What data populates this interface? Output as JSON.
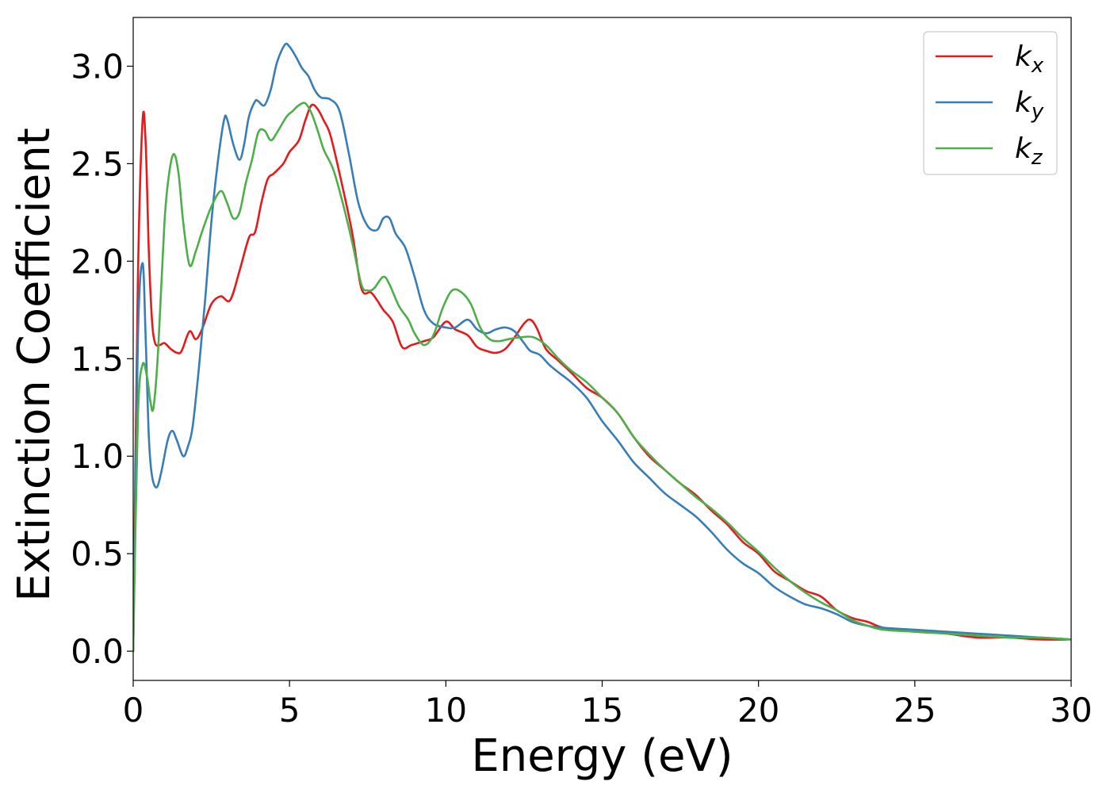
{
  "chart_data": {
    "type": "line",
    "title": "",
    "xlabel": "Energy (eV)",
    "ylabel": "Extinction Coefficient",
    "xlim": [
      0,
      30
    ],
    "ylim": [
      -0.15,
      3.25
    ],
    "xticks": [
      0,
      5,
      10,
      15,
      20,
      25,
      30
    ],
    "xtick_labels": [
      "0",
      "5",
      "10",
      "15",
      "20",
      "25",
      "30"
    ],
    "yticks": [
      0.0,
      0.5,
      1.0,
      1.5,
      2.0,
      2.5,
      3.0
    ],
    "ytick_labels": [
      "0.0",
      "0.5",
      "1.0",
      "1.5",
      "2.0",
      "2.5",
      "3.0"
    ],
    "grid": false,
    "legend_position": "top-right",
    "series": [
      {
        "name": "k_x",
        "label_base": "k",
        "label_sub": "x",
        "color": "#e41a1c",
        "x": [
          0,
          0.15,
          0.3,
          0.4,
          0.5,
          0.6,
          0.7,
          0.85,
          1.0,
          1.2,
          1.4,
          1.55,
          1.8,
          2.0,
          2.2,
          2.5,
          2.8,
          3.1,
          3.4,
          3.7,
          3.9,
          4.1,
          4.3,
          4.5,
          4.8,
          5.0,
          5.3,
          5.5,
          5.7,
          5.9,
          6.1,
          6.3,
          6.6,
          7.0,
          7.3,
          7.6,
          7.8,
          8.0,
          8.3,
          8.6,
          8.9,
          9.3,
          9.6,
          10.0,
          10.3,
          10.7,
          11.0,
          11.3,
          11.6,
          11.9,
          12.2,
          12.5,
          12.7,
          12.9,
          13.2,
          13.6,
          14.0,
          14.5,
          15.0,
          15.5,
          16.0,
          16.5,
          17.0,
          17.5,
          18.0,
          18.5,
          19.0,
          19.5,
          20.0,
          20.5,
          21.0,
          21.5,
          22.0,
          22.5,
          23.0,
          23.5,
          24.0,
          25.0,
          26.0,
          27.0,
          28.0,
          29.0,
          30.0
        ],
        "y": [
          0.0,
          1.9,
          2.72,
          2.6,
          2.05,
          1.7,
          1.58,
          1.57,
          1.58,
          1.55,
          1.53,
          1.54,
          1.64,
          1.6,
          1.65,
          1.78,
          1.82,
          1.8,
          1.95,
          2.12,
          2.15,
          2.3,
          2.42,
          2.45,
          2.5,
          2.56,
          2.62,
          2.72,
          2.8,
          2.78,
          2.72,
          2.65,
          2.45,
          2.15,
          1.86,
          1.84,
          1.8,
          1.75,
          1.69,
          1.56,
          1.57,
          1.59,
          1.61,
          1.69,
          1.65,
          1.62,
          1.56,
          1.54,
          1.53,
          1.55,
          1.61,
          1.68,
          1.7,
          1.66,
          1.55,
          1.49,
          1.43,
          1.35,
          1.3,
          1.22,
          1.1,
          1.0,
          0.93,
          0.86,
          0.8,
          0.72,
          0.65,
          0.56,
          0.5,
          0.41,
          0.36,
          0.31,
          0.28,
          0.21,
          0.17,
          0.15,
          0.12,
          0.1,
          0.09,
          0.07,
          0.07,
          0.06,
          0.06
        ]
      },
      {
        "name": "k_y",
        "label_base": "k",
        "label_sub": "y",
        "color": "#377eb8",
        "x": [
          0,
          0.15,
          0.3,
          0.4,
          0.5,
          0.6,
          0.75,
          0.9,
          1.1,
          1.25,
          1.4,
          1.6,
          1.75,
          1.9,
          2.1,
          2.3,
          2.5,
          2.7,
          2.9,
          3.0,
          3.2,
          3.4,
          3.55,
          3.7,
          3.9,
          4.0,
          4.2,
          4.4,
          4.6,
          4.85,
          5.0,
          5.2,
          5.4,
          5.6,
          5.8,
          6.0,
          6.3,
          6.6,
          6.9,
          7.2,
          7.5,
          7.8,
          8.0,
          8.2,
          8.4,
          8.7,
          9.0,
          9.3,
          9.6,
          10.0,
          10.3,
          10.7,
          11.0,
          11.3,
          11.6,
          11.9,
          12.2,
          12.5,
          12.7,
          13.0,
          13.3,
          13.6,
          14.0,
          14.5,
          15.0,
          15.5,
          16.0,
          16.5,
          17.0,
          17.5,
          18.0,
          18.5,
          19.0,
          19.5,
          20.0,
          20.5,
          21.0,
          21.5,
          22.0,
          22.5,
          23.0,
          23.5,
          24.0,
          25.0,
          26.0,
          27.0,
          28.0,
          29.0,
          30.0
        ],
        "y": [
          0.0,
          1.6,
          1.99,
          1.6,
          1.1,
          0.9,
          0.84,
          0.92,
          1.08,
          1.13,
          1.08,
          1.0,
          1.05,
          1.15,
          1.45,
          1.8,
          2.2,
          2.5,
          2.72,
          2.73,
          2.6,
          2.52,
          2.6,
          2.74,
          2.82,
          2.82,
          2.8,
          2.88,
          3.02,
          3.11,
          3.1,
          3.05,
          2.99,
          2.95,
          2.88,
          2.84,
          2.83,
          2.77,
          2.55,
          2.3,
          2.18,
          2.16,
          2.22,
          2.22,
          2.14,
          2.07,
          1.92,
          1.75,
          1.68,
          1.66,
          1.66,
          1.7,
          1.65,
          1.63,
          1.65,
          1.66,
          1.64,
          1.58,
          1.54,
          1.52,
          1.47,
          1.43,
          1.38,
          1.3,
          1.18,
          1.08,
          0.97,
          0.89,
          0.81,
          0.75,
          0.69,
          0.61,
          0.52,
          0.45,
          0.4,
          0.33,
          0.28,
          0.24,
          0.22,
          0.19,
          0.15,
          0.13,
          0.12,
          0.11,
          0.1,
          0.09,
          0.08,
          0.07,
          0.06
        ]
      },
      {
        "name": "k_z",
        "label_base": "k",
        "label_sub": "z",
        "color": "#4daf4a",
        "x": [
          0,
          0.15,
          0.3,
          0.45,
          0.55,
          0.65,
          0.8,
          1.0,
          1.15,
          1.3,
          1.45,
          1.6,
          1.8,
          2.0,
          2.2,
          2.5,
          2.8,
          3.0,
          3.2,
          3.4,
          3.6,
          3.8,
          4.0,
          4.2,
          4.4,
          4.6,
          4.9,
          5.1,
          5.3,
          5.5,
          5.7,
          5.9,
          6.1,
          6.4,
          6.7,
          7.0,
          7.3,
          7.5,
          7.7,
          8.0,
          8.2,
          8.5,
          8.8,
          9.0,
          9.3,
          9.6,
          9.9,
          10.2,
          10.5,
          10.8,
          11.1,
          11.4,
          11.7,
          12.0,
          12.4,
          12.8,
          13.2,
          13.6,
          14.0,
          14.5,
          15.0,
          15.5,
          16.0,
          16.5,
          17.0,
          17.5,
          18.0,
          18.5,
          19.0,
          19.5,
          20.0,
          20.5,
          21.0,
          21.5,
          22.0,
          22.5,
          23.0,
          23.5,
          24.0,
          25.0,
          26.0,
          27.0,
          28.0,
          29.0,
          30.0
        ],
        "y": [
          0.0,
          1.2,
          1.47,
          1.4,
          1.28,
          1.25,
          1.55,
          2.2,
          2.45,
          2.55,
          2.45,
          2.2,
          1.98,
          2.05,
          2.15,
          2.28,
          2.36,
          2.3,
          2.22,
          2.25,
          2.4,
          2.52,
          2.66,
          2.67,
          2.62,
          2.66,
          2.74,
          2.77,
          2.8,
          2.81,
          2.76,
          2.67,
          2.57,
          2.47,
          2.3,
          2.1,
          1.88,
          1.85,
          1.86,
          1.92,
          1.88,
          1.77,
          1.7,
          1.63,
          1.57,
          1.62,
          1.76,
          1.85,
          1.84,
          1.78,
          1.66,
          1.6,
          1.59,
          1.6,
          1.61,
          1.61,
          1.57,
          1.5,
          1.44,
          1.38,
          1.3,
          1.22,
          1.1,
          1.01,
          0.93,
          0.86,
          0.79,
          0.73,
          0.66,
          0.58,
          0.51,
          0.43,
          0.36,
          0.3,
          0.25,
          0.21,
          0.16,
          0.13,
          0.11,
          0.1,
          0.09,
          0.08,
          0.07,
          0.07,
          0.06
        ]
      }
    ]
  }
}
